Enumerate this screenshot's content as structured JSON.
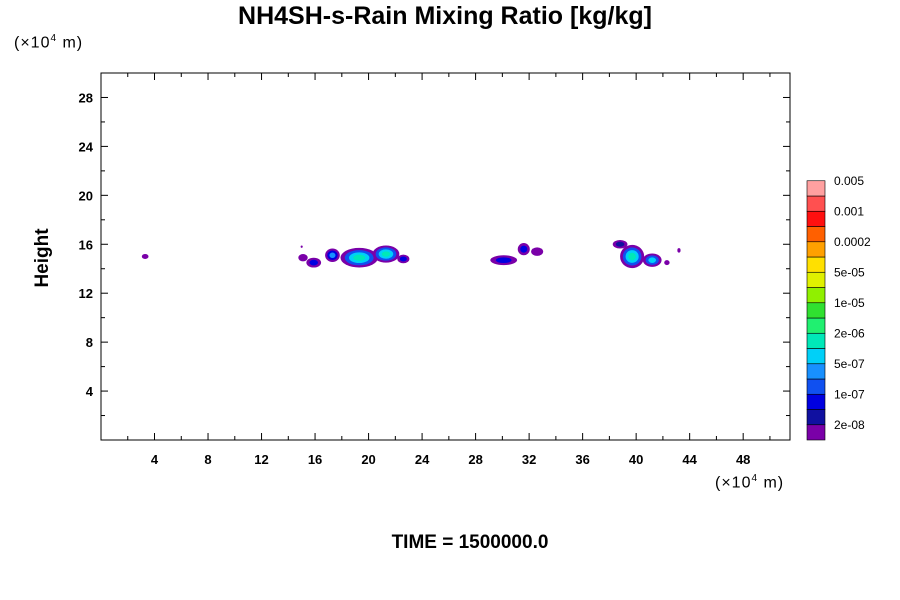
{
  "chart_data": {
    "type": "heatmap",
    "title": "NH4SH-s-Rain Mixing Ratio [kg/kg]",
    "ylabel": "Height",
    "x_unit": {
      "prefix": "(×10",
      "exp": "4",
      "suffix": " m)"
    },
    "y_unit": {
      "prefix": "(×10",
      "exp": "4",
      "suffix": " m)"
    },
    "time_label": "TIME = 1500000.0",
    "xlim": [
      0,
      51.5
    ],
    "ylim": [
      0,
      30
    ],
    "x_ticks": [
      4,
      8,
      12,
      16,
      20,
      24,
      28,
      32,
      36,
      40,
      44,
      48
    ],
    "y_ticks": [
      4,
      8,
      12,
      16,
      20,
      24,
      28
    ],
    "colorbar": {
      "colors": [
        "#7a00a8",
        "#1010a0",
        "#0000e0",
        "#1050f0",
        "#1890ff",
        "#00d0f8",
        "#00e8b8",
        "#20f070",
        "#30e030",
        "#90f000",
        "#e0f000",
        "#ffe000",
        "#ffa000",
        "#ff6000",
        "#ff1010",
        "#ff5050",
        "#ffa0a0"
      ],
      "labels": [
        "2e-08",
        "1e-07",
        "5e-07",
        "2e-06",
        "1e-05",
        "5e-05",
        "0.0002",
        "0.001",
        "0.005"
      ]
    },
    "blobs": [
      {
        "x": 3.3,
        "y": 15.0,
        "rx": 0.25,
        "ry": 0.2,
        "levels": [
          0
        ]
      },
      {
        "x": 15.0,
        "y": 15.8,
        "rx": 0.08,
        "ry": 0.1,
        "levels": [
          0
        ]
      },
      {
        "x": 15.1,
        "y": 14.9,
        "rx": 0.35,
        "ry": 0.3,
        "levels": [
          0
        ]
      },
      {
        "x": 15.9,
        "y": 14.5,
        "rx": 0.55,
        "ry": 0.4,
        "levels": [
          0,
          2
        ]
      },
      {
        "x": 17.3,
        "y": 15.1,
        "rx": 0.55,
        "ry": 0.55,
        "levels": [
          0,
          2,
          4
        ]
      },
      {
        "x": 19.3,
        "y": 14.9,
        "rx": 1.4,
        "ry": 0.8,
        "levels": [
          0,
          3,
          5,
          6
        ]
      },
      {
        "x": 21.3,
        "y": 15.2,
        "rx": 1.0,
        "ry": 0.7,
        "levels": [
          0,
          3,
          5,
          6
        ]
      },
      {
        "x": 22.6,
        "y": 14.8,
        "rx": 0.45,
        "ry": 0.35,
        "levels": [
          0,
          2
        ]
      },
      {
        "x": 30.1,
        "y": 14.7,
        "rx": 1.0,
        "ry": 0.4,
        "levels": [
          0,
          2
        ]
      },
      {
        "x": 31.6,
        "y": 15.6,
        "rx": 0.45,
        "ry": 0.5,
        "levels": [
          0,
          2
        ]
      },
      {
        "x": 32.6,
        "y": 15.4,
        "rx": 0.45,
        "ry": 0.35,
        "levels": [
          0
        ]
      },
      {
        "x": 38.8,
        "y": 16.0,
        "rx": 0.55,
        "ry": 0.35,
        "levels": [
          0,
          1
        ]
      },
      {
        "x": 39.7,
        "y": 15.0,
        "rx": 0.9,
        "ry": 0.95,
        "levels": [
          0,
          3,
          5,
          6
        ]
      },
      {
        "x": 41.2,
        "y": 14.7,
        "rx": 0.7,
        "ry": 0.55,
        "levels": [
          0,
          3,
          5
        ]
      },
      {
        "x": 42.3,
        "y": 14.5,
        "rx": 0.2,
        "ry": 0.2,
        "levels": [
          0
        ]
      },
      {
        "x": 43.2,
        "y": 15.5,
        "rx": 0.12,
        "ry": 0.18,
        "levels": [
          0
        ]
      }
    ]
  }
}
